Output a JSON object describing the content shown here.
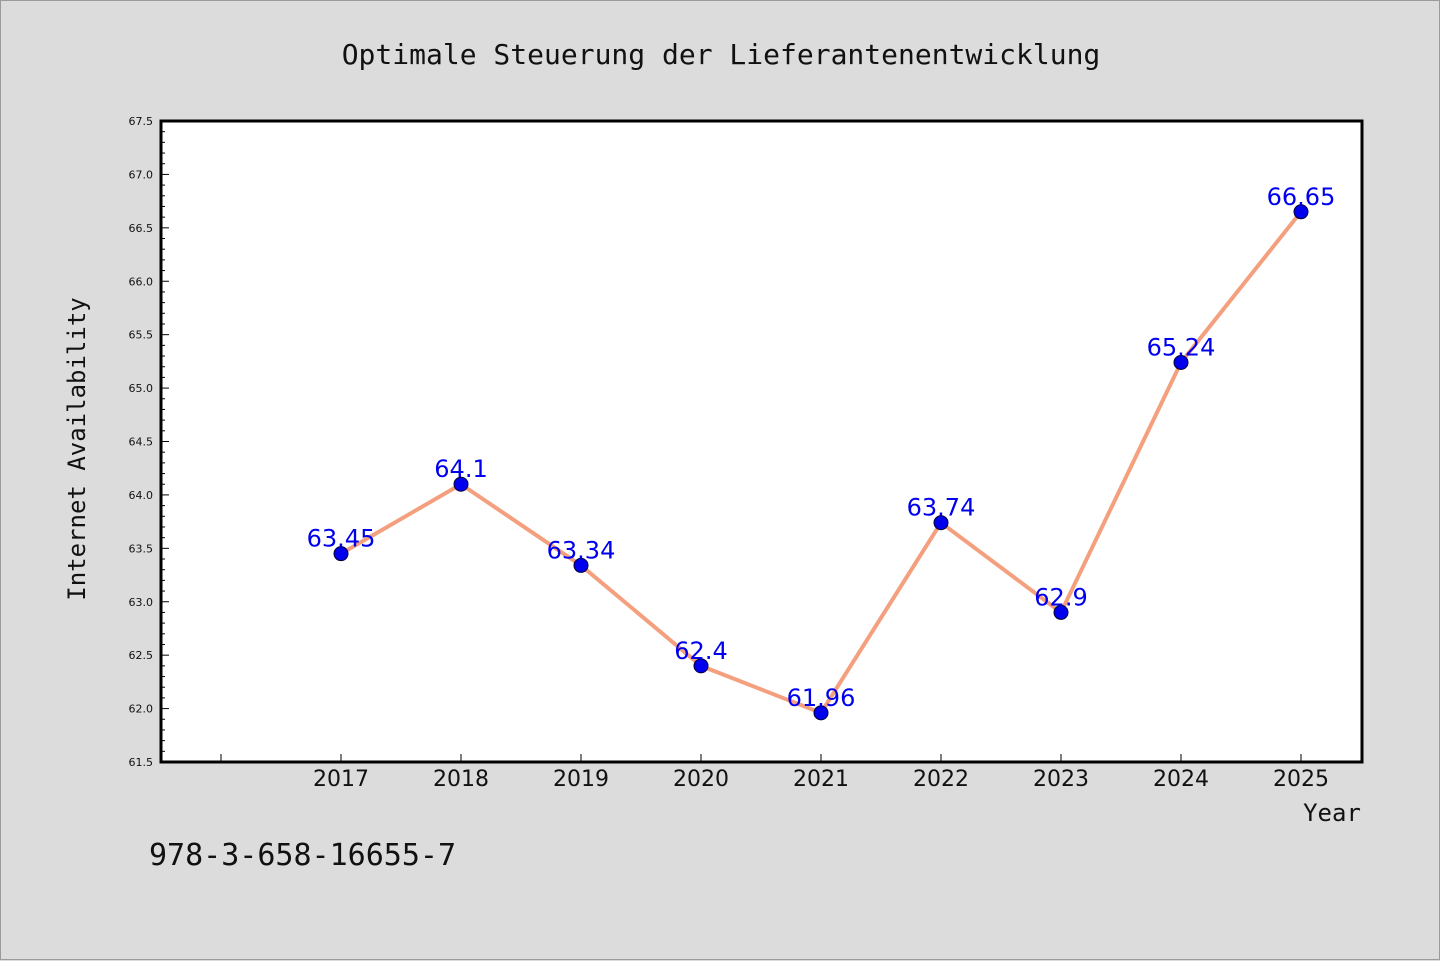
{
  "chart_data": {
    "type": "line",
    "title": "Optimale Steuerung der Lieferantenentwicklung",
    "xlabel": "Year",
    "ylabel": "Internet Availability",
    "categories": [
      "2017",
      "2018",
      "2019",
      "2020",
      "2021",
      "2022",
      "2023",
      "2024",
      "2025"
    ],
    "values": [
      63.45,
      64.1,
      63.34,
      62.4,
      61.96,
      63.74,
      62.9,
      65.24,
      66.65
    ],
    "data_labels": [
      "63.45",
      "64.1",
      "63.34",
      "62.4",
      "61.96",
      "63.74",
      "62.9",
      "65.24",
      "66.65"
    ],
    "ylim": [
      61.5,
      67.5
    ],
    "yticks": [
      "61.5",
      "62.0",
      "62.5",
      "63.0",
      "63.5",
      "64.0",
      "64.5",
      "65.0",
      "65.5",
      "66.0",
      "66.5",
      "67.0",
      "67.5"
    ],
    "grid": false,
    "legend": "none",
    "colors": {
      "line": "#f4a07e",
      "marker": "#0000ee",
      "data_label": "#0000ee",
      "background": "#dcdcdc",
      "plot_background": "#ffffff"
    }
  },
  "footer": {
    "isbn": "978-3-658-16655-7"
  }
}
